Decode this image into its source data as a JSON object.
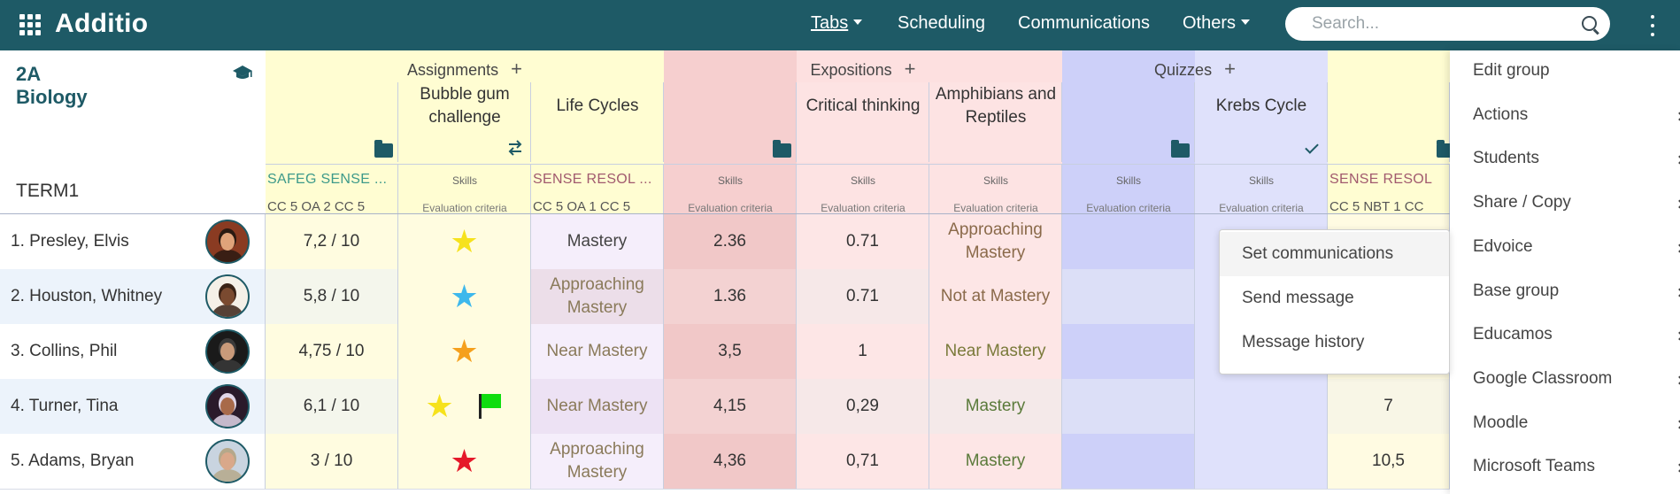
{
  "app": {
    "logo": "Additio"
  },
  "nav": {
    "tabs": "Tabs",
    "scheduling": "Scheduling",
    "communications": "Communications",
    "others": "Others"
  },
  "search": {
    "placeholder": "Search..."
  },
  "group": {
    "name": "2A Biology",
    "term": "TERM1"
  },
  "colors": {
    "brand": "#1e5a66",
    "assignments_bg": "#fffdd2",
    "expositions_bg": "#f6d0d0",
    "quizzes_bg": "#cccffa"
  },
  "column_groups": [
    {
      "label": "Assignments"
    },
    {
      "label": "Expositions"
    },
    {
      "label": "Quizzes"
    }
  ],
  "columns": [
    {
      "title": "",
      "codes": "SAFEG  SENSE  ...",
      "criteria": "CC 5 OA 2  CC 5"
    },
    {
      "title": "Bubble gum challenge",
      "skills": "Skills",
      "criteria": "Evaluation criteria"
    },
    {
      "title": "Life Cycles",
      "codes": "SENSE  RESOL  ...",
      "criteria": "CC 5 OA 1  CC 5"
    },
    {
      "title": "",
      "skills": "Skills",
      "criteria": "Evaluation criteria"
    },
    {
      "title": "Critical thinking",
      "skills": "Skills",
      "criteria": "Evaluation criteria"
    },
    {
      "title": "Amphibians and Reptiles",
      "skills": "Skills",
      "criteria": "Evaluation criteria"
    },
    {
      "title": "",
      "skills": "Skills",
      "criteria": "Evaluation criteria"
    },
    {
      "title": "Krebs Cycle",
      "skills": "Skills",
      "criteria": "Evaluation criteria"
    },
    {
      "title": "",
      "codes": "SENSE  RESOL",
      "criteria": "CC 5 NBT 1  CC"
    }
  ],
  "students": [
    {
      "name": "1. Presley, Elvis",
      "avatar": "avatar-elvis",
      "c0": "7,2 / 10",
      "star": "yellow",
      "c2": "Mastery",
      "c3": "2.36",
      "c4": "0.71",
      "c5": "Approaching Mastery",
      "c8": ""
    },
    {
      "name": "2. Houston, Whitney",
      "avatar": "avatar-whitney",
      "c0": "5,8 / 10",
      "star": "blue",
      "c2": "Approaching Mastery",
      "c3": "1.36",
      "c4": "0.71",
      "c5": "Not at Mastery",
      "c8": ""
    },
    {
      "name": "3. Collins, Phil",
      "avatar": "avatar-phil",
      "c0": "4,75 / 10",
      "star": "orange",
      "c2": "Near Mastery",
      "c3": "3,5",
      "c4": "1",
      "c5": "Near Mastery",
      "c8": ""
    },
    {
      "name": "4. Turner, Tina",
      "avatar": "avatar-tina",
      "c0": "6,1 / 10",
      "star": "yellow",
      "flag": "green",
      "c2": "Near Mastery",
      "c3": "4,15",
      "c4": "0,29",
      "c5": "Mastery",
      "c8": "7"
    },
    {
      "name": "5. Adams, Bryan",
      "avatar": "avatar-bryan",
      "c0": "3 / 10",
      "star": "red",
      "c2": "Approaching Mastery",
      "c3": "4,36",
      "c4": "0,71",
      "c5": "Mastery",
      "c8": "10,5"
    }
  ],
  "communications_menu": {
    "items": [
      "Set communications",
      "Send message",
      "Message history"
    ]
  },
  "side_menu": {
    "items": [
      {
        "label": "Edit group",
        "has_sub": false
      },
      {
        "label": "Actions",
        "has_sub": true
      },
      {
        "label": "Students",
        "has_sub": true
      },
      {
        "label": "Share / Copy",
        "has_sub": true
      },
      {
        "label": "Edvoice",
        "has_sub": true
      },
      {
        "label": "Base group",
        "has_sub": true
      },
      {
        "label": "Educamos",
        "has_sub": true
      },
      {
        "label": "Google Classroom",
        "has_sub": true
      },
      {
        "label": "Moodle",
        "has_sub": true
      },
      {
        "label": "Microsoft Teams",
        "has_sub": true
      }
    ]
  }
}
